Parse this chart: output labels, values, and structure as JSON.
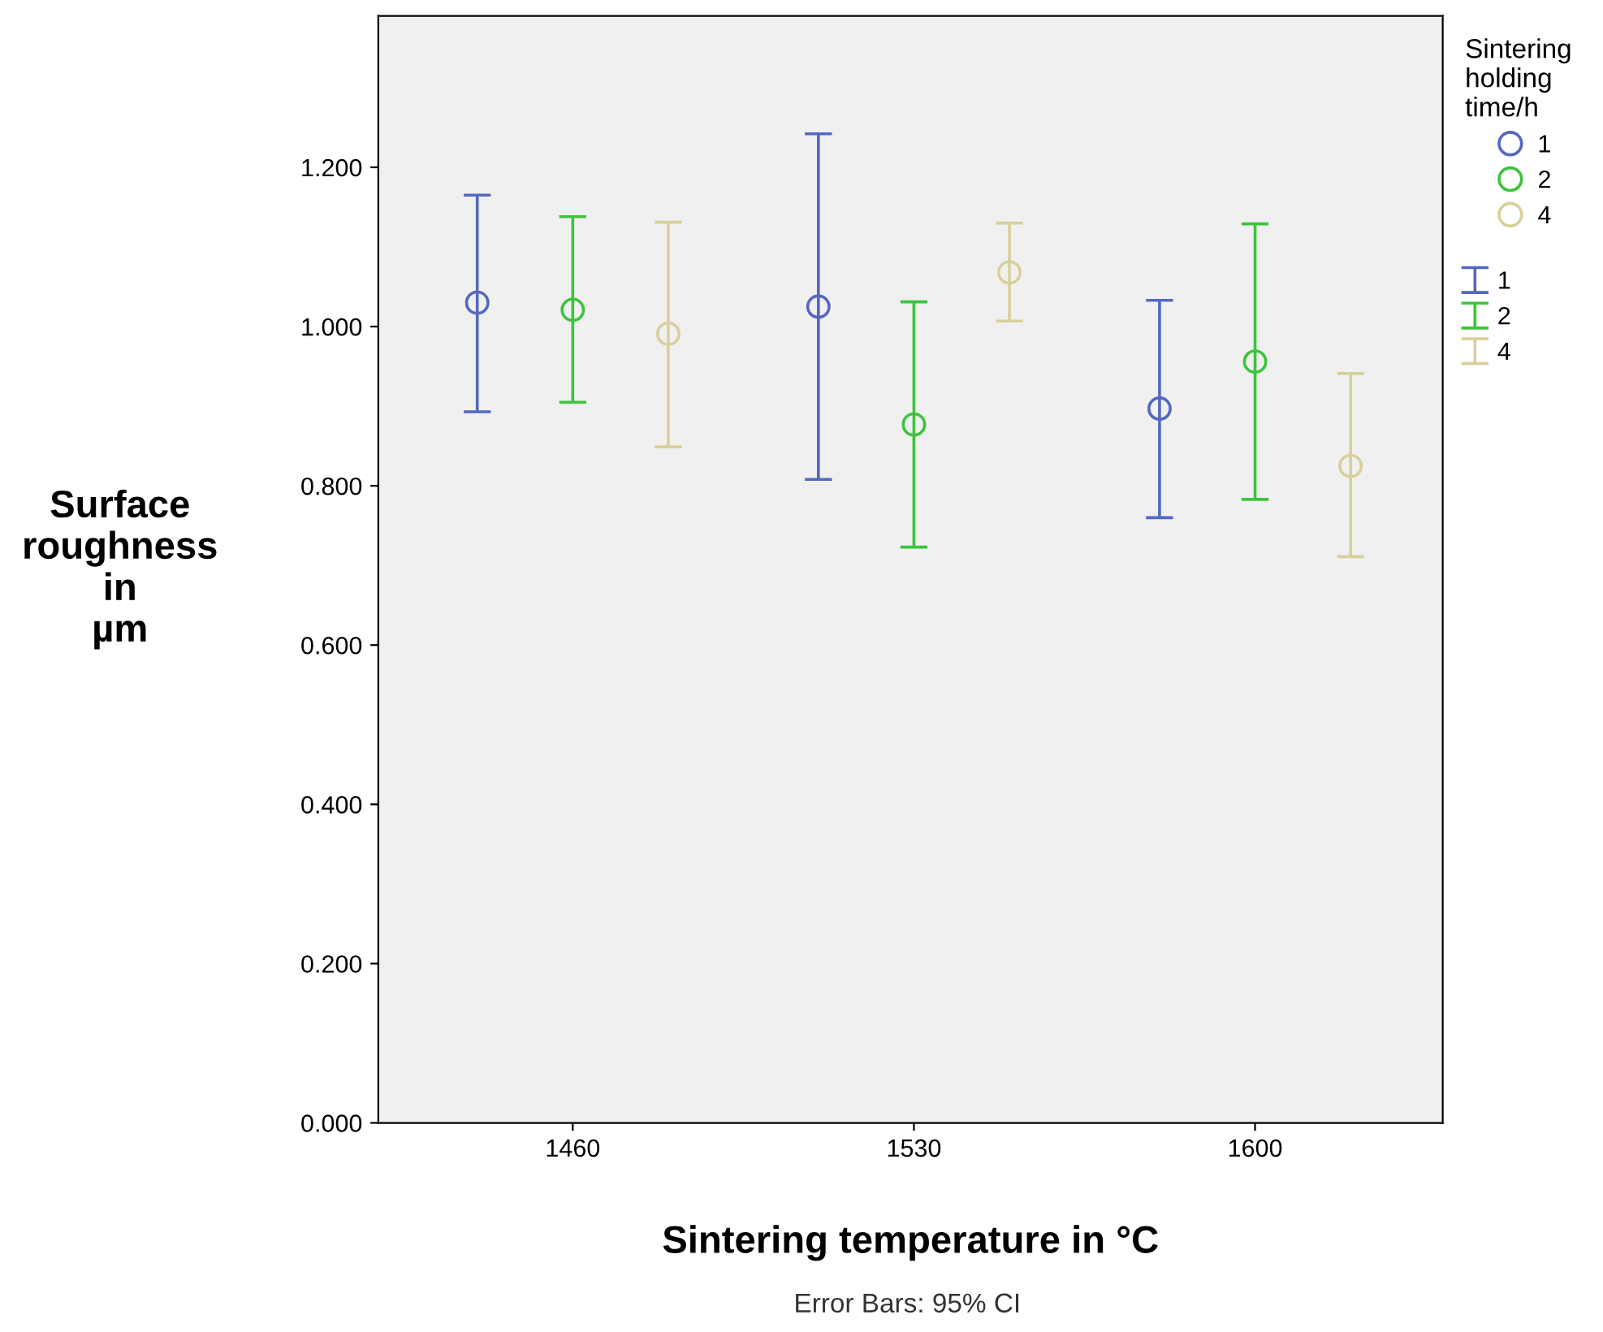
{
  "chart_data": {
    "type": "scatter",
    "xlabel": "Sintering temperature in °C",
    "ylabel": "Surface\nroughness\nin\nµm",
    "legend_title": "Sintering\nholding\ntime/h",
    "annotations": [
      "Error Bars: 95% CI"
    ],
    "categories": [
      "1460",
      "1530",
      "1600"
    ],
    "series": [
      {
        "name": "1",
        "color": "#5468c0",
        "values": [
          1.03,
          1.025,
          0.897
        ],
        "errors": [
          [
            0.893,
            1.165
          ],
          [
            0.808,
            1.242
          ],
          [
            0.76,
            1.033
          ]
        ]
      },
      {
        "name": "2",
        "color": "#3cc43c",
        "values": [
          1.021,
          0.877,
          0.956
        ],
        "errors": [
          [
            0.905,
            1.138
          ],
          [
            0.723,
            1.031
          ],
          [
            0.783,
            1.129
          ]
        ]
      },
      {
        "name": "4",
        "color": "#d8d09a",
        "values": [
          0.991,
          1.068,
          0.825
        ],
        "errors": [
          [
            0.849,
            1.131
          ],
          [
            1.007,
            1.13
          ],
          [
            0.711,
            0.941
          ]
        ]
      }
    ],
    "ylim": [
      0,
      1.39
    ],
    "yticks": [
      {
        "value": 0,
        "label": "0.000"
      },
      {
        "value": 0.2,
        "label": "0.200"
      },
      {
        "value": 0.4,
        "label": "0.400"
      },
      {
        "value": 0.6,
        "label": "0.600"
      },
      {
        "value": 0.8,
        "label": "0.800"
      },
      {
        "value": 1.0,
        "label": "1.000"
      },
      {
        "value": 1.2,
        "label": "1.200"
      }
    ],
    "marker": "circle",
    "grid": false,
    "legend": "top right"
  }
}
